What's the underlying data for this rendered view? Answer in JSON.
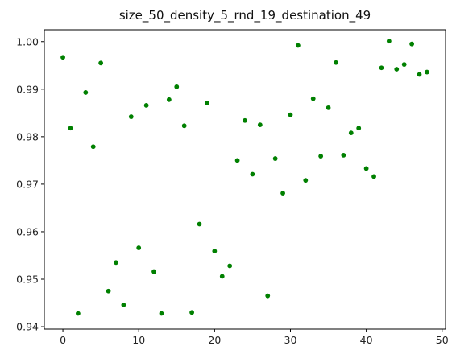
{
  "chart_data": {
    "type": "scatter",
    "title": "size_50_density_5_rnd_19_destination_49",
    "xlabel": "",
    "ylabel": "",
    "xlim": [
      -2.45,
      50.45
    ],
    "ylim": [
      0.9395,
      1.0025
    ],
    "x_ticks": [
      0,
      10,
      20,
      30,
      40,
      50
    ],
    "x_tick_labels": [
      "0",
      "10",
      "20",
      "30",
      "40",
      "50"
    ],
    "y_ticks": [
      0.94,
      0.95,
      0.96,
      0.97,
      0.98,
      0.99,
      1.0
    ],
    "y_tick_labels": [
      "0.94",
      "0.95",
      "0.96",
      "0.97",
      "0.98",
      "0.99",
      "1.00"
    ],
    "grid": false,
    "marker_color": "#008000",
    "x": [
      0,
      1,
      2,
      3,
      4,
      5,
      6,
      7,
      8,
      9,
      10,
      11,
      12,
      13,
      14,
      15,
      16,
      17,
      18,
      19,
      20,
      21,
      22,
      23,
      24,
      25,
      26,
      27,
      28,
      29,
      30,
      31,
      32,
      33,
      34,
      35,
      36,
      37,
      38,
      39,
      40,
      41,
      42,
      43,
      44,
      45,
      46,
      47,
      48
    ],
    "y": [
      0.9967,
      0.9818,
      0.9428,
      0.9893,
      0.9779,
      0.9955,
      0.9475,
      0.9535,
      0.9446,
      0.9842,
      0.9566,
      0.9866,
      0.9516,
      0.9428,
      0.9878,
      0.9905,
      0.9823,
      0.943,
      0.9616,
      0.9871,
      0.9559,
      0.9506,
      0.9528,
      0.975,
      0.9834,
      0.9721,
      0.9825,
      0.9465,
      0.9754,
      0.9681,
      0.9846,
      0.9992,
      0.9708,
      0.988,
      0.9759,
      0.9861,
      0.9956,
      0.9761,
      0.9808,
      0.9818,
      0.9733,
      0.9716,
      0.9945,
      1.0001,
      0.9942,
      0.9952,
      0.9995,
      0.9931,
      0.9936
    ]
  }
}
